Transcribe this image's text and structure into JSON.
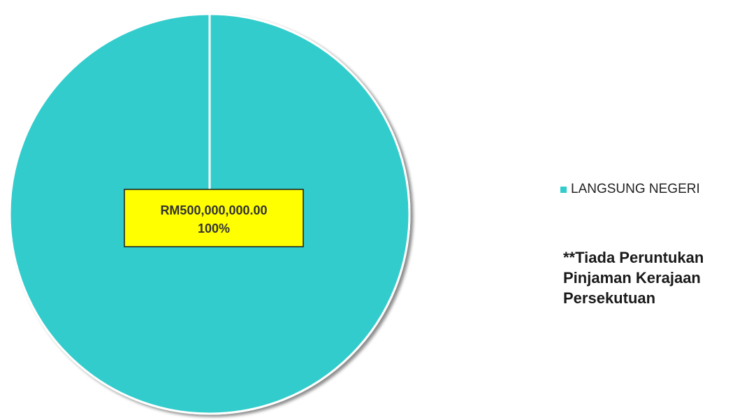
{
  "chart_data": {
    "type": "pie",
    "slices": [
      {
        "name": "LANGSUNG NEGERI",
        "value": 500000000,
        "percent": 100,
        "value_label": "RM500,000,000.00",
        "percent_label": "100%",
        "color": "#33CCCC"
      }
    ],
    "legend": "right",
    "label_box_color": "#FFFF00"
  },
  "note": "**Tiada Peruntukan\nPinjaman Kerajaan\nPersekutuan"
}
